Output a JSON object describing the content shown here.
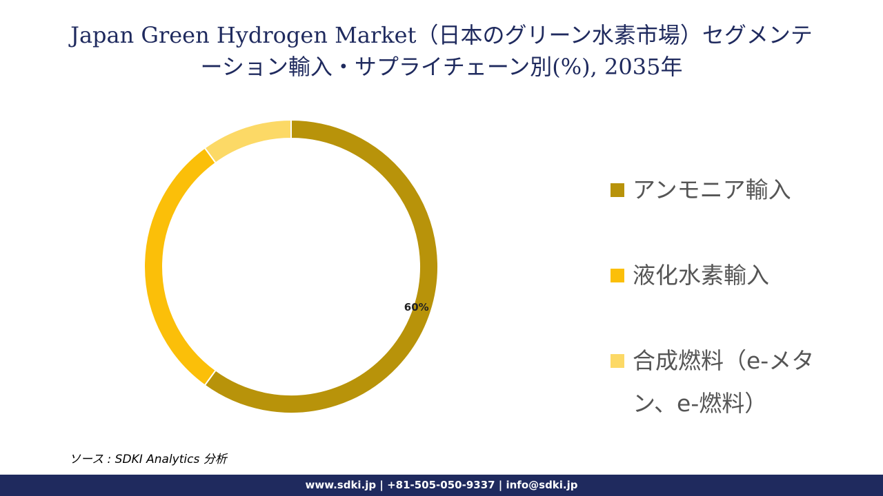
{
  "chart_data": {
    "type": "pie",
    "title": "Japan Green Hydrogen Market（日本のグリーン水素市場）セグメンテーション輸入・サプライチェーン別(%), 2035年",
    "categories": [
      "アンモニア輸入",
      "液化水素輸入",
      "合成燃料（e-メタン、e-燃料）"
    ],
    "values": [
      60,
      30,
      10
    ],
    "value_labels": [
      "60%",
      null,
      null
    ],
    "colors": [
      "#b8930a",
      "#fbbf09",
      "#fcd966"
    ]
  },
  "source": "ソース : SDKI Analytics 分析",
  "footer": "www.sdki.jp | +81-505-050-9337 | info@sdki.jp"
}
